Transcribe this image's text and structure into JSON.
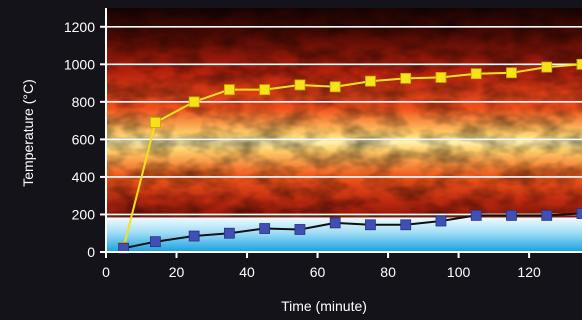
{
  "chart_data": {
    "type": "line",
    "title": "",
    "xlabel": "Time (minute)",
    "ylabel": "Temperature (°C)",
    "xlim": [
      0,
      135
    ],
    "ylim": [
      0,
      1300
    ],
    "x_ticks": [
      0,
      20,
      40,
      60,
      80,
      100,
      120
    ],
    "y_ticks": [
      0,
      200,
      400,
      600,
      800,
      1000,
      1200
    ],
    "grid": true,
    "legend": "none",
    "series": [
      {
        "color": "#f5e21b",
        "marker_color": "#f5e21b",
        "x": [
          5,
          14,
          25,
          35,
          45,
          55,
          65,
          75,
          85,
          95,
          105,
          115,
          125,
          135
        ],
        "y": [
          25,
          690,
          800,
          865,
          865,
          890,
          880,
          910,
          925,
          930,
          950,
          955,
          985,
          1000
        ]
      },
      {
        "color": "#101010",
        "marker_color": "#3f4fb5",
        "x": [
          5,
          14,
          25,
          35,
          45,
          55,
          65,
          75,
          85,
          95,
          105,
          115,
          125,
          135
        ],
        "y": [
          20,
          55,
          85,
          100,
          125,
          120,
          155,
          145,
          145,
          165,
          195,
          195,
          195,
          205
        ]
      }
    ],
    "colors": {
      "background": "#15131a",
      "gridline": "#ffffff",
      "axis": "#ffffff",
      "fire_core": "#ffe07a",
      "fire_mid": "#e03314",
      "fire_dark": "#4a0a04",
      "water_top": "#e8f7ff",
      "water_bottom": "#1aa3e0"
    }
  }
}
